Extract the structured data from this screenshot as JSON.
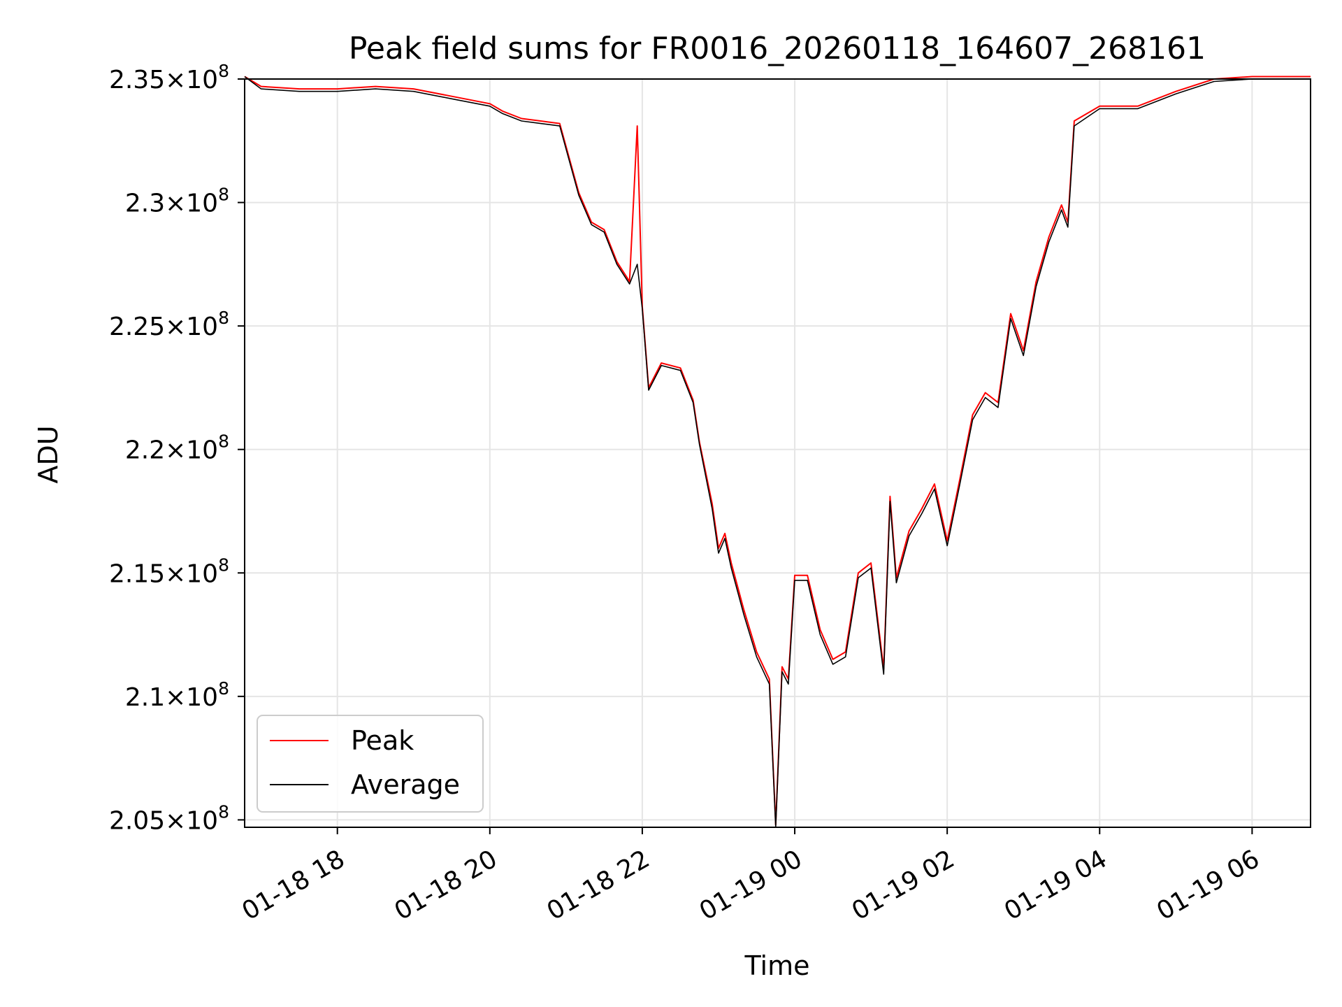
{
  "chart_data": {
    "type": "line",
    "title": "Peak field sums for FR0016_20260118_164607_268161",
    "xlabel": "Time",
    "ylabel": "ADU",
    "xlim": [
      "2026-01-18 16:47",
      "2026-01-19 06:46"
    ],
    "ylim": [
      204700000,
      235000000
    ],
    "grid": true,
    "legend_position": "lower-left",
    "x_ticks": [
      "01-18 18",
      "01-18 20",
      "01-18 22",
      "01-19 00",
      "01-19 02",
      "01-19 04",
      "01-19 06"
    ],
    "y_ticks": [
      {
        "value": 205000000,
        "mantissa": "2.05"
      },
      {
        "value": 210000000,
        "mantissa": "2.1"
      },
      {
        "value": 215000000,
        "mantissa": "2.15"
      },
      {
        "value": 220000000,
        "mantissa": "2.2"
      },
      {
        "value": 225000000,
        "mantissa": "2.25"
      },
      {
        "value": 230000000,
        "mantissa": "2.3"
      },
      {
        "value": 235000000,
        "mantissa": "2.35"
      }
    ],
    "y_tick_base": "10",
    "y_tick_exponent": "8",
    "x": [
      "2026-01-18 16:47",
      "2026-01-18 17:00",
      "2026-01-18 17:30",
      "2026-01-18 18:00",
      "2026-01-18 18:30",
      "2026-01-18 19:00",
      "2026-01-18 19:30",
      "2026-01-18 20:00",
      "2026-01-18 20:10",
      "2026-01-18 20:25",
      "2026-01-18 20:40",
      "2026-01-18 20:55",
      "2026-01-18 21:10",
      "2026-01-18 21:20",
      "2026-01-18 21:30",
      "2026-01-18 21:40",
      "2026-01-18 21:50",
      "2026-01-18 21:56",
      "2026-01-18 22:00",
      "2026-01-18 22:05",
      "2026-01-18 22:15",
      "2026-01-18 22:30",
      "2026-01-18 22:40",
      "2026-01-18 22:45",
      "2026-01-18 22:55",
      "2026-01-18 23:00",
      "2026-01-18 23:05",
      "2026-01-18 23:10",
      "2026-01-18 23:20",
      "2026-01-18 23:30",
      "2026-01-18 23:40",
      "2026-01-18 23:45",
      "2026-01-18 23:50",
      "2026-01-18 23:55",
      "2026-01-19 00:00",
      "2026-01-19 00:10",
      "2026-01-19 00:20",
      "2026-01-19 00:30",
      "2026-01-19 00:40",
      "2026-01-19 00:50",
      "2026-01-19 01:00",
      "2026-01-19 01:10",
      "2026-01-19 01:15",
      "2026-01-19 01:20",
      "2026-01-19 01:30",
      "2026-01-19 01:40",
      "2026-01-19 01:50",
      "2026-01-19 02:00",
      "2026-01-19 02:10",
      "2026-01-19 02:20",
      "2026-01-19 02:30",
      "2026-01-19 02:40",
      "2026-01-19 02:50",
      "2026-01-19 03:00",
      "2026-01-19 03:10",
      "2026-01-19 03:20",
      "2026-01-19 03:30",
      "2026-01-19 03:35",
      "2026-01-19 03:40",
      "2026-01-19 04:00",
      "2026-01-19 04:30",
      "2026-01-19 05:00",
      "2026-01-19 05:30",
      "2026-01-19 06:00",
      "2026-01-19 06:46"
    ],
    "series": [
      {
        "name": "Peak",
        "color": "#ff0000",
        "values": [
          235100000,
          234700000,
          234600000,
          234600000,
          234700000,
          234600000,
          234300000,
          234000000,
          233700000,
          233400000,
          233300000,
          233200000,
          230400000,
          229200000,
          228900000,
          227600000,
          226800000,
          233100000,
          225800000,
          222500000,
          223500000,
          223300000,
          222000000,
          220300000,
          217800000,
          216000000,
          216600000,
          215400000,
          213500000,
          211800000,
          210700000,
          204800000,
          211200000,
          210700000,
          214900000,
          214900000,
          212700000,
          211500000,
          211800000,
          215000000,
          215400000,
          211100000,
          218100000,
          214800000,
          216700000,
          217600000,
          218600000,
          216300000,
          218800000,
          221400000,
          222300000,
          221900000,
          225500000,
          224000000,
          226800000,
          228600000,
          229900000,
          229200000,
          233300000,
          233900000,
          233900000,
          234500000,
          235000000,
          235100000,
          235100000
        ]
      },
      {
        "name": "Average",
        "color": "#000000",
        "values": [
          235100000,
          234600000,
          234500000,
          234500000,
          234600000,
          234500000,
          234200000,
          233900000,
          233600000,
          233300000,
          233200000,
          233100000,
          230300000,
          229100000,
          228800000,
          227500000,
          226700000,
          227500000,
          225700000,
          222400000,
          223400000,
          223200000,
          221900000,
          220200000,
          217600000,
          215800000,
          216400000,
          215200000,
          213300000,
          211600000,
          210500000,
          204700000,
          211000000,
          210500000,
          214700000,
          214700000,
          212500000,
          211300000,
          211600000,
          214800000,
          215200000,
          210900000,
          217900000,
          214600000,
          216500000,
          217400000,
          218400000,
          216100000,
          218600000,
          221200000,
          222100000,
          221700000,
          225300000,
          223800000,
          226600000,
          228400000,
          229700000,
          229000000,
          233100000,
          233800000,
          233800000,
          234400000,
          234900000,
          235000000,
          235000000
        ]
      }
    ]
  }
}
